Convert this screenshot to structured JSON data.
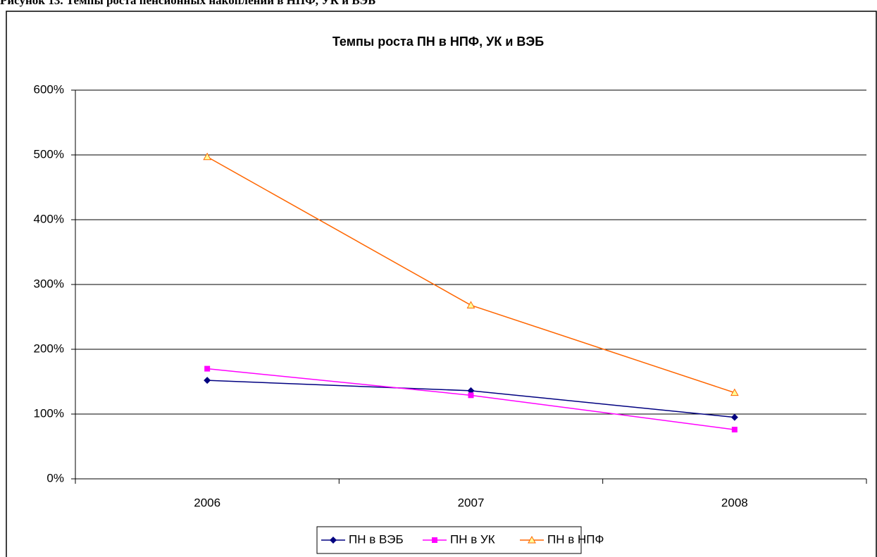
{
  "caption": "Рисунок 13. Темпы роста пенсионных накоплений в НПФ, УК и ВЭБ",
  "chart_data": {
    "type": "line",
    "title": "Темпы роста ПН в НПФ, УК и ВЭБ",
    "categories": [
      "2006",
      "2007",
      "2008"
    ],
    "series": [
      {
        "name": "ПН в ВЭБ",
        "color": "#000080",
        "marker": "diamond",
        "values": [
          152,
          136,
          95
        ]
      },
      {
        "name": "ПН в УК",
        "color": "#ff00ff",
        "marker": "square",
        "values": [
          170,
          129,
          76
        ]
      },
      {
        "name": "ПН в НПФ",
        "color": "#ff6600",
        "marker": "triangle",
        "values": [
          497,
          268,
          133
        ]
      }
    ],
    "ylim": [
      0,
      600
    ],
    "yticks": [
      {
        "value": 0,
        "label": "0%"
      },
      {
        "value": 100,
        "label": "100%"
      },
      {
        "value": 200,
        "label": "200%"
      },
      {
        "value": 300,
        "label": "300%"
      },
      {
        "value": 400,
        "label": "400%"
      },
      {
        "value": 500,
        "label": "500%"
      },
      {
        "value": 600,
        "label": "600%"
      }
    ],
    "grid": true,
    "legend": "bottom"
  }
}
